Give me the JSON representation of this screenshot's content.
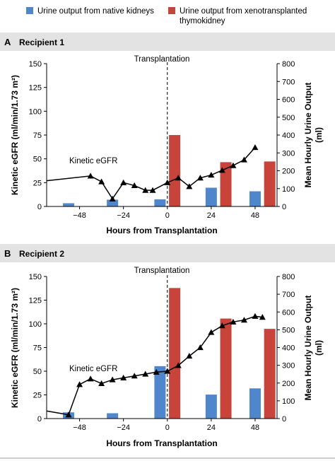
{
  "colors": {
    "native": "#4f86cc",
    "xeno": "#c8443a",
    "header_bg": "#e3e3e3",
    "line": "#000000"
  },
  "legend": {
    "native_label": "Urine output from native kidneys",
    "xeno_label_line1": "Urine output from xenotransplanted",
    "xeno_label_line2": "thymokidney"
  },
  "shared_axes": {
    "xlabel": "Hours from Transplantation",
    "x_ticks": [
      "−48",
      "−24",
      "0",
      "24",
      "48"
    ],
    "ylabel_left": "Kinetic eGFR (ml/min/1.73 m²)",
    "ylabel_right_line1": "Mean Hourly Urine Output",
    "ylabel_right_line2": "(ml)",
    "y_left_ticks": [
      "0",
      "25",
      "50",
      "75",
      "100",
      "125",
      "150"
    ],
    "y_right_ticks": [
      "0",
      "100",
      "200",
      "300",
      "400",
      "500",
      "600",
      "700",
      "800"
    ]
  },
  "chart_data": [
    {
      "type": "bar",
      "panel_letter": "A",
      "title": "Recipient 1",
      "xlabel": "Hours from Transplantation",
      "ylabel": "Kinetic eGFR (ml/min/1.73 m²)",
      "ylabel_right": "Mean Hourly Urine Output (ml)",
      "xlim": [
        -66,
        60
      ],
      "ylim": [
        0,
        150
      ],
      "ylim_right": [
        0,
        800
      ],
      "transplant_label": "Transplantation",
      "transplant_x": 0,
      "line_label": "Kinetic eGFR",
      "series": [
        {
          "name": "Urine output from native kidneys",
          "kind": "bar",
          "axis": "right",
          "x": [
            -54,
            -30,
            -4,
            24,
            48
          ],
          "values": [
            18,
            38,
            40,
            105,
            85
          ]
        },
        {
          "name": "Urine output from xenotransplanted thymokidney",
          "kind": "bar",
          "axis": "right",
          "x": [
            4,
            32,
            56
          ],
          "values": [
            400,
            248,
            252
          ]
        },
        {
          "name": "Kinetic eGFR",
          "kind": "line",
          "axis": "left",
          "x": [
            -66,
            -42,
            -36,
            -30,
            -24,
            -18,
            -12,
            -8,
            0,
            6,
            12,
            18,
            24,
            30,
            36,
            42,
            48
          ],
          "values": [
            27,
            32,
            26,
            8,
            25,
            22,
            17,
            17,
            25,
            30,
            21,
            30,
            33,
            38,
            43,
            49,
            62
          ],
          "markers_from_index": 1
        }
      ]
    },
    {
      "type": "bar",
      "panel_letter": "B",
      "title": "Recipient 2",
      "xlabel": "Hours from Transplantation",
      "ylabel": "Kinetic eGFR (ml/min/1.73 m²)",
      "ylabel_right": "Mean Hourly Urine Output (ml)",
      "xlim": [
        -66,
        60
      ],
      "ylim": [
        0,
        150
      ],
      "ylim_right": [
        0,
        800
      ],
      "transplant_label": "Transplantation",
      "transplant_x": 0,
      "line_label": "Kinetic eGFR",
      "series": [
        {
          "name": "Urine output from native kidneys",
          "kind": "bar",
          "axis": "right",
          "x": [
            -54,
            -30,
            -4,
            24,
            48
          ],
          "values": [
            35,
            30,
            295,
            135,
            170
          ]
        },
        {
          "name": "Urine output from xenotransplanted thymokidney",
          "kind": "bar",
          "axis": "right",
          "x": [
            4,
            32,
            56
          ],
          "values": [
            735,
            563,
            505
          ]
        },
        {
          "name": "Kinetic eGFR",
          "kind": "line",
          "axis": "left",
          "x": [
            -66,
            -54,
            -48,
            -42,
            -36,
            -30,
            -24,
            -18,
            -12,
            -6,
            0,
            6,
            12,
            18,
            24,
            30,
            36,
            42,
            48,
            52
          ],
          "values": [
            8,
            4,
            36,
            42,
            37,
            41,
            43,
            45,
            47,
            49,
            50,
            56,
            66,
            75,
            91,
            98,
            102,
            104,
            108,
            107
          ],
          "markers_from_index": 1
        }
      ]
    }
  ]
}
